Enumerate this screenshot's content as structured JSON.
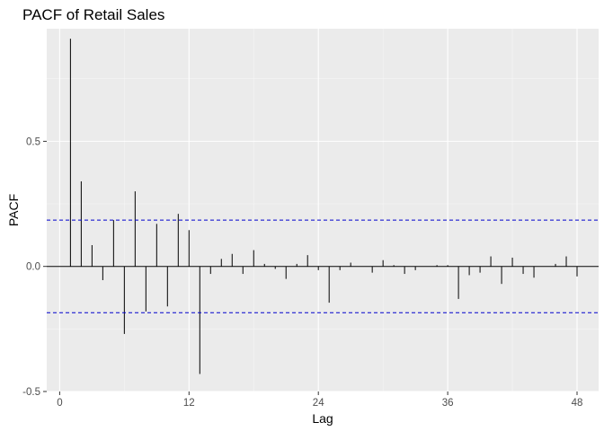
{
  "chart_data": {
    "type": "bar",
    "title": "PACF of Retail Sales",
    "xlabel": "Lag",
    "ylabel": "PACF",
    "xlim": [
      -1.2,
      50
    ],
    "ylim": [
      -0.5,
      0.95
    ],
    "x_ticks": [
      0,
      12,
      24,
      36,
      48
    ],
    "x_tick_labels": [
      "0",
      "12",
      "24",
      "36",
      "48"
    ],
    "y_ticks": [
      -0.5,
      0.0,
      0.5
    ],
    "y_tick_labels": [
      "-0.5",
      "0.0",
      "0.5"
    ],
    "grid": true,
    "confidence_bounds": [
      0.185,
      -0.185
    ],
    "series": [
      {
        "x": [
          1,
          2,
          3,
          4,
          5,
          6,
          7,
          8,
          9,
          10,
          11,
          12,
          13,
          14,
          15,
          16,
          17,
          18,
          19,
          20,
          21,
          22,
          23,
          24,
          25,
          26,
          27,
          28,
          29,
          30,
          31,
          32,
          33,
          34,
          35,
          36,
          37,
          38,
          39,
          40,
          41,
          42,
          43,
          44,
          45,
          46,
          47,
          48
        ],
        "values": [
          0.91,
          0.34,
          0.085,
          -0.055,
          0.185,
          -0.27,
          0.3,
          -0.18,
          0.17,
          -0.16,
          0.21,
          0.145,
          -0.43,
          -0.03,
          0.03,
          0.05,
          -0.03,
          0.065,
          0.01,
          -0.01,
          -0.05,
          0.01,
          0.045,
          -0.015,
          -0.145,
          -0.015,
          0.015,
          0.0,
          -0.025,
          0.025,
          0.005,
          -0.03,
          -0.015,
          0.0,
          0.005,
          0.005,
          -0.13,
          -0.035,
          -0.025,
          0.04,
          -0.07,
          0.035,
          -0.03,
          -0.045,
          0.0,
          0.01,
          0.04,
          -0.04
        ]
      }
    ],
    "colors": {
      "panel": "#ebebeb",
      "grid_major": "#ffffff",
      "grid_minor": "#f5f5f5",
      "bar": "#000000",
      "bound": "#0000cc",
      "tick": "#333333"
    }
  }
}
